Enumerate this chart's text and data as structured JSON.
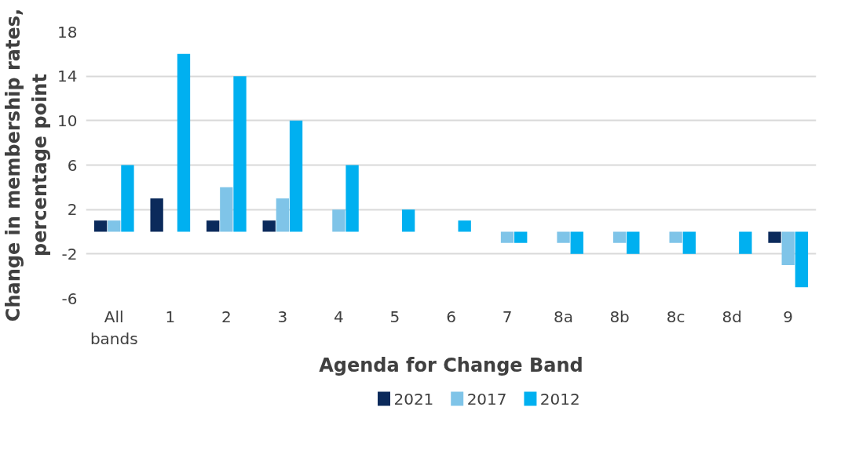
{
  "chart_data": {
    "type": "bar",
    "xlabel": "Agenda for Change Band",
    "ylabel": "Change in membership rates, percentage point",
    "categories": [
      "All bands",
      "1",
      "2",
      "3",
      "4",
      "5",
      "6",
      "7",
      "8a",
      "8b",
      "8c",
      "8d",
      "9"
    ],
    "series": [
      {
        "name": "2021",
        "color": "#0b2a5b",
        "values": [
          1,
          3,
          1,
          1,
          null,
          null,
          null,
          null,
          null,
          null,
          null,
          null,
          -1
        ]
      },
      {
        "name": "2017",
        "color": "#7fc4e8",
        "values": [
          1,
          null,
          4,
          3,
          2,
          null,
          null,
          -1,
          -1,
          -1,
          -1,
          null,
          -3
        ]
      },
      {
        "name": "2012",
        "color": "#00b0f0",
        "values": [
          6,
          16,
          14,
          10,
          6,
          2,
          1,
          -1,
          -2,
          -2,
          -2,
          -2,
          -5
        ]
      }
    ],
    "ylim": [
      -6,
      18
    ],
    "yticks": [
      -6,
      -2,
      2,
      6,
      10,
      14,
      18
    ],
    "grid": "y",
    "legend": "bottom"
  }
}
